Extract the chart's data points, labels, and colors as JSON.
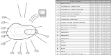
{
  "background_color": "#ffffff",
  "fig_width": 1.6,
  "fig_height": 0.8,
  "dpi": 100,
  "diagram_color": "#444444",
  "line_color": "#777777",
  "text_color": "#111111",
  "header_bg": "#c8c8c8",
  "table_cols": [
    0.0,
    0.09,
    0.62,
    0.72,
    0.82,
    0.91,
    1.0
  ],
  "n_data_rows": 20,
  "parts": [
    [
      "1",
      "22060AA000",
      "1",
      ""
    ],
    [
      "2",
      "HARNESS & CORD ASSY",
      "",
      ""
    ],
    [
      "3",
      "HARNESS & CORD ASSY (EL)",
      "",
      ""
    ],
    [
      "4",
      "HARNESS, ENGINE ROOM",
      "",
      ""
    ],
    [
      "5",
      "CORD, KNOCK SENSOR",
      "",
      ""
    ],
    [
      "6",
      "CORD, O2 SENSOR",
      "",
      ""
    ],
    [
      "7",
      "CORD SET, INJECTOR",
      "",
      ""
    ],
    [
      "8",
      "CORD, CRANK ANGLE SENSOR",
      "",
      ""
    ],
    [
      "9",
      "BRACKET, HARNESS",
      "",
      ""
    ],
    [
      "10",
      "BRACKET, HARNESS",
      "",
      ""
    ],
    [
      "11",
      "BRACKET",
      "",
      ""
    ],
    [
      "12",
      "GROMMET",
      "",
      ""
    ],
    [
      "13",
      "GROMMET",
      "",
      ""
    ],
    [
      "14",
      "GROMMET",
      "",
      ""
    ],
    [
      "15",
      "CLIP",
      "",
      ""
    ],
    [
      "16",
      "CLAMP",
      "",
      ""
    ],
    [
      "17",
      "CLAMP",
      "",
      ""
    ],
    [
      "18",
      "BAND",
      "",
      ""
    ],
    [
      "19",
      "STRAP",
      "",
      ""
    ],
    [
      "20",
      "HARNESS & CORD ASSY (EL) 1",
      "",
      ""
    ]
  ]
}
